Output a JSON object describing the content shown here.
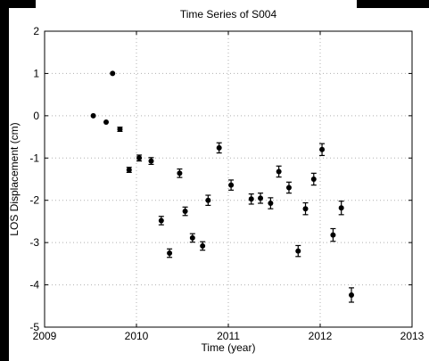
{
  "chart_data": {
    "type": "scatter",
    "title": "Time Series of S004",
    "xlabel": "Time (year)",
    "ylabel": "LOS Displacement (cm)",
    "xlim": [
      2009,
      2013
    ],
    "ylim": [
      -5,
      2
    ],
    "xticks": [
      "2009",
      "2010",
      "2011",
      "2012",
      "2013"
    ],
    "yticks": [
      "-5",
      "-4",
      "-3",
      "-2",
      "-1",
      "0",
      "1",
      "2"
    ],
    "grid": true,
    "marker_color": "#000000",
    "points": [
      {
        "x": 2009.53,
        "y": 0.0,
        "err": 0
      },
      {
        "x": 2009.67,
        "y": -0.15,
        "err": 0
      },
      {
        "x": 2009.74,
        "y": 1.0,
        "err": 0
      },
      {
        "x": 2009.82,
        "y": -0.32,
        "err": 0.05
      },
      {
        "x": 2009.92,
        "y": -1.28,
        "err": 0.06
      },
      {
        "x": 2010.03,
        "y": -1.0,
        "err": 0.07
      },
      {
        "x": 2010.16,
        "y": -1.07,
        "err": 0.08
      },
      {
        "x": 2010.27,
        "y": -2.48,
        "err": 0.1
      },
      {
        "x": 2010.36,
        "y": -3.25,
        "err": 0.1
      },
      {
        "x": 2010.47,
        "y": -1.36,
        "err": 0.1
      },
      {
        "x": 2010.53,
        "y": -2.26,
        "err": 0.1
      },
      {
        "x": 2010.61,
        "y": -2.89,
        "err": 0.1
      },
      {
        "x": 2010.72,
        "y": -3.08,
        "err": 0.1
      },
      {
        "x": 2010.78,
        "y": -2.0,
        "err": 0.12
      },
      {
        "x": 2010.9,
        "y": -0.76,
        "err": 0.12
      },
      {
        "x": 2011.03,
        "y": -1.64,
        "err": 0.12
      },
      {
        "x": 2011.25,
        "y": -1.97,
        "err": 0.12
      },
      {
        "x": 2011.35,
        "y": -1.95,
        "err": 0.12
      },
      {
        "x": 2011.46,
        "y": -2.07,
        "err": 0.13
      },
      {
        "x": 2011.55,
        "y": -1.32,
        "err": 0.13
      },
      {
        "x": 2011.66,
        "y": -1.7,
        "err": 0.13
      },
      {
        "x": 2011.76,
        "y": -3.2,
        "err": 0.13
      },
      {
        "x": 2011.84,
        "y": -2.2,
        "err": 0.14
      },
      {
        "x": 2011.93,
        "y": -1.5,
        "err": 0.14
      },
      {
        "x": 2012.02,
        "y": -0.8,
        "err": 0.14
      },
      {
        "x": 2012.14,
        "y": -2.82,
        "err": 0.15
      },
      {
        "x": 2012.23,
        "y": -2.18,
        "err": 0.16
      },
      {
        "x": 2012.34,
        "y": -4.24,
        "err": 0.17
      }
    ]
  }
}
